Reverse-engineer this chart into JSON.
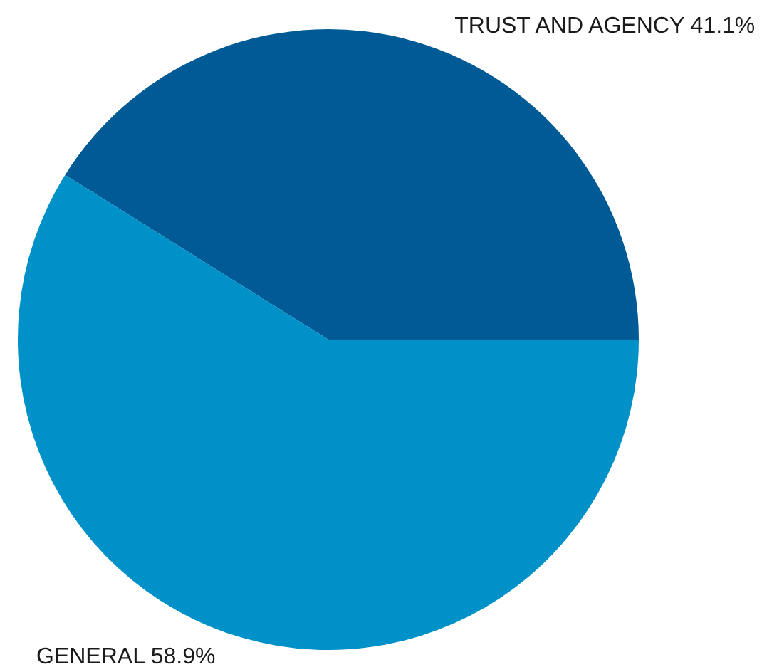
{
  "chart_data": {
    "type": "pie",
    "categories": [
      "TRUST AND AGENCY",
      "GENERAL"
    ],
    "values": [
      41.1,
      58.9
    ],
    "colors": [
      "#005a96",
      "#0091c8"
    ],
    "value_labels": [
      "41.1%",
      "58.9%"
    ]
  }
}
